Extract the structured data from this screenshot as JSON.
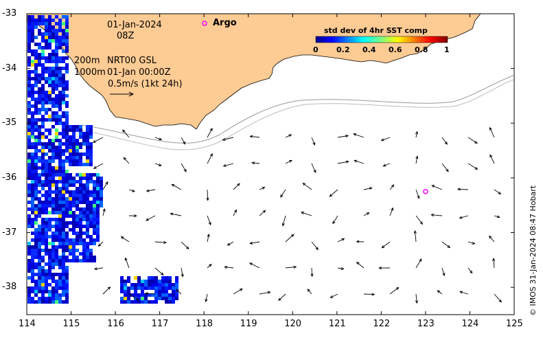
{
  "map": {
    "date_line": "01-Jan-2024",
    "time_line": "08Z",
    "depth_label_1": "200m",
    "depth_label_2": "1000m",
    "model_label": "NRT00 GSL",
    "model_time": "01-Jan 00:00Z",
    "scale_label": "0.5m/s (1kt 24h)",
    "argo_label": "Argo",
    "colorbar": {
      "title": "std dev of 4hr SST comp",
      "ticks": [
        "0",
        "0.2",
        "0.4",
        "0.6",
        "0.8",
        "1"
      ]
    },
    "x_ticks": [
      "114",
      "115",
      "116",
      "117",
      "118",
      "119",
      "120",
      "121",
      "122",
      "123",
      "124",
      "125"
    ],
    "y_ticks": [
      "-33",
      "-34",
      "-35",
      "-36",
      "-37",
      "-38"
    ],
    "x_range": [
      114,
      125
    ],
    "y_range": [
      -38.5,
      -33
    ],
    "credit": "© IMOS 31-Jan-2024 08:47 Hobart",
    "argo_float": {
      "lon": 123.0,
      "lat": -36.25
    },
    "colors": {
      "land": "#fdcb94",
      "coast": "#000000",
      "isobath": "#999999",
      "argo": "#ff00ff"
    }
  }
}
